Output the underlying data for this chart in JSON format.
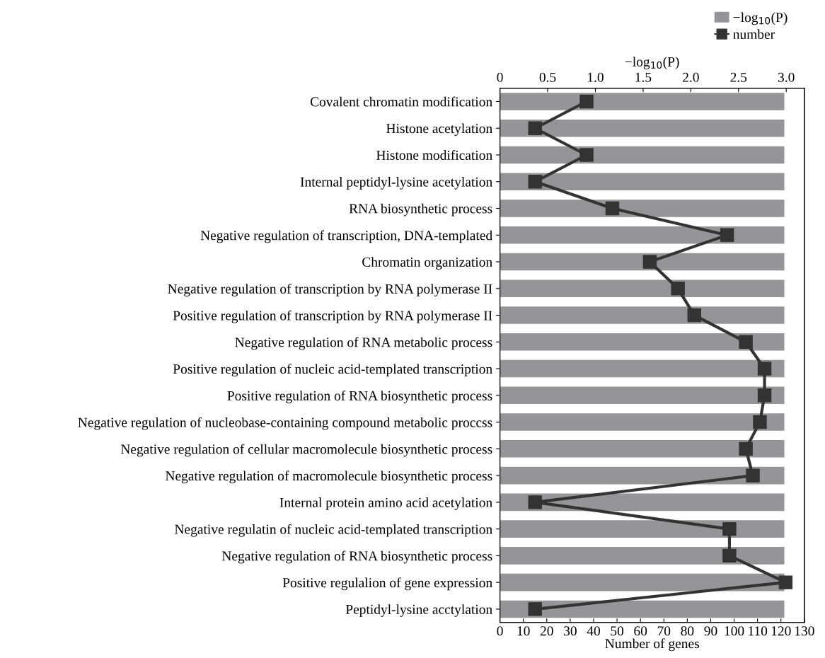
{
  "chart_data": {
    "type": "bar",
    "orientation": "horizontal",
    "categories": [
      "Covalent chromatin modification",
      "Histone acetylation",
      "Histone modification",
      "Internal peptidyl-lysine acetylation",
      "RNA biosynthetic process",
      "Negative regulation of transcription, DNA-templated",
      "Chromatin organization",
      "Negative regulation of transcription by RNA polymerase II",
      "Positive regulation of transcription by RNA polymerase II",
      "Negative regulation of RNA metabolic process",
      "Positive regulation of nucleic acid-templated transcription",
      "Positive regulation of RNA biosynthetic process",
      "Negative regulation of nucleobase-containing compound metabolic proccss",
      "Negative regulation of cellular macromolecule biosynthetic process",
      "Negative regulation of macromolecule biosynthetic process",
      "Internal protein amino acid acetylation",
      "Negative regulatin of nucleic acid-templated transcription",
      "Negative regulation of RNA biosynthetic process",
      "Positive regulalion of gene expression",
      "Peptidyl-lysine acctylation"
    ],
    "series": [
      {
        "name": "−log$_{10}$(P)",
        "axis": "x2",
        "color": "#939598",
        "values": [
          2.98,
          2.98,
          2.98,
          2.98,
          2.98,
          2.98,
          2.98,
          2.98,
          2.98,
          2.98,
          2.98,
          2.98,
          2.98,
          2.98,
          2.98,
          2.98,
          2.98,
          2.98,
          2.98,
          2.98
        ]
      },
      {
        "name": "number",
        "type": "line",
        "color": "#333333",
        "marker": "square",
        "values": [
          37,
          15,
          37,
          15,
          48,
          97,
          64,
          76,
          83,
          105,
          113,
          113,
          111,
          105,
          108,
          15,
          98,
          98,
          122,
          15
        ]
      }
    ],
    "xlabel": "Number of genes",
    "xlim": [
      0,
      130
    ],
    "xticks": [
      0,
      10,
      20,
      30,
      40,
      50,
      60,
      70,
      80,
      90,
      100,
      110,
      120,
      130
    ],
    "x2label": "−log$_{10}$(P)",
    "x2lim": [
      0,
      3.19
    ],
    "x2ticks": [
      0,
      0.5,
      {
        "value": 1,
        "label": "1.0"
      },
      1.5,
      {
        "value": 2,
        "label": "2.0"
      },
      2.5,
      {
        "value": 3,
        "label": "3.0"
      }
    ],
    "legend": "top right",
    "grid": false
  }
}
